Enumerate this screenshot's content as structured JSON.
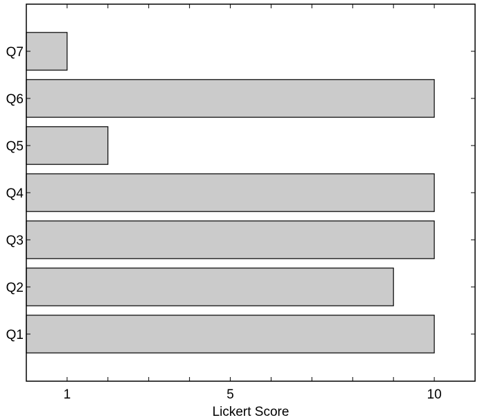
{
  "chart_data": {
    "type": "bar",
    "orientation": "horizontal",
    "categories": [
      "Q1",
      "Q2",
      "Q3",
      "Q4",
      "Q5",
      "Q6",
      "Q7"
    ],
    "values": [
      10,
      9,
      10,
      10,
      2,
      10,
      1
    ],
    "title": "",
    "xlabel": "Lickert Score",
    "ylabel": "",
    "xlim": [
      0,
      11
    ],
    "xticks": [
      1,
      2,
      3,
      4,
      5,
      6,
      7,
      8,
      9,
      10
    ],
    "xtick_labels": [
      "1",
      "",
      "",
      "",
      "5",
      "",
      "",
      "",
      "",
      "10"
    ],
    "grid": false,
    "legend": "none",
    "colors": {
      "bar_fill": "#cbcbcb",
      "bar_stroke": "#000000",
      "axis": "#000000",
      "background": "#ffffff"
    }
  }
}
